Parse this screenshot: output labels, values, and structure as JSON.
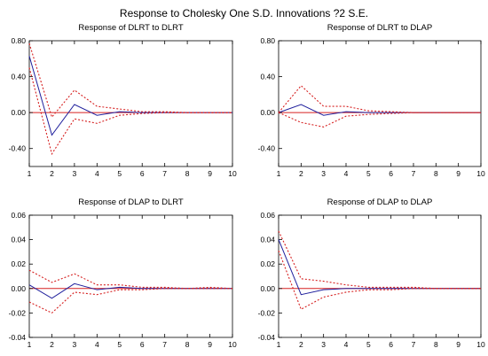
{
  "title": "Response to Cholesky One S.D. Innovations ?2 S.E.",
  "colors": {
    "response": "#1f1f9c",
    "band": "#d62020",
    "zero_line": "#d62020",
    "frame": "#000000"
  },
  "chart_data": [
    {
      "type": "line",
      "title": "Response of DLRT to DLRT",
      "x": [
        1,
        2,
        3,
        4,
        5,
        6,
        7,
        8,
        9,
        10
      ],
      "xlim": [
        1,
        10
      ],
      "ylim": [
        -0.6,
        0.8
      ],
      "yticks": [
        "0.80",
        "0.40",
        "0.00",
        "-0.40"
      ],
      "ytick_values": [
        0.8,
        0.4,
        0.0,
        -0.4
      ],
      "xticks": [
        "1",
        "2",
        "3",
        "4",
        "5",
        "6",
        "7",
        "8",
        "9",
        "10"
      ],
      "series": [
        {
          "values": [
            0.63,
            -0.25,
            0.09,
            -0.03,
            0.01,
            0.0,
            0.0,
            0.0,
            0.0,
            0.0
          ]
        },
        {
          "values": [
            0.77,
            -0.05,
            0.25,
            0.07,
            0.04,
            0.01,
            0.01,
            0.0,
            0.0,
            0.0
          ]
        },
        {
          "values": [
            0.5,
            -0.46,
            -0.07,
            -0.12,
            -0.03,
            -0.01,
            0.0,
            0.0,
            0.0,
            0.0
          ]
        }
      ]
    },
    {
      "type": "line",
      "title": "Response of DLRT to DLAP",
      "x": [
        1,
        2,
        3,
        4,
        5,
        6,
        7,
        8,
        9,
        10
      ],
      "xlim": [
        1,
        10
      ],
      "ylim": [
        -0.6,
        0.8
      ],
      "yticks": [
        "0.80",
        "0.40",
        "0.00",
        "-0.40"
      ],
      "ytick_values": [
        0.8,
        0.4,
        0.0,
        -0.4
      ],
      "xticks": [
        "1",
        "2",
        "3",
        "4",
        "5",
        "6",
        "7",
        "8",
        "9",
        "10"
      ],
      "series": [
        {
          "values": [
            0.0,
            0.09,
            -0.03,
            0.01,
            0.0,
            0.0,
            0.0,
            0.0,
            0.0,
            0.0
          ]
        },
        {
          "values": [
            0.0,
            0.3,
            0.07,
            0.07,
            0.02,
            0.01,
            0.0,
            0.0,
            0.0,
            0.0
          ]
        },
        {
          "values": [
            0.0,
            -0.11,
            -0.16,
            -0.04,
            -0.02,
            -0.01,
            0.0,
            0.0,
            0.0,
            0.0
          ]
        }
      ]
    },
    {
      "type": "line",
      "title": "Response of DLAP to DLRT",
      "x": [
        1,
        2,
        3,
        4,
        5,
        6,
        7,
        8,
        9,
        10
      ],
      "xlim": [
        1,
        10
      ],
      "ylim": [
        -0.04,
        0.06
      ],
      "yticks": [
        "0.06",
        "0.04",
        "0.02",
        "0.00",
        "-0.02",
        "-0.04"
      ],
      "ytick_values": [
        0.06,
        0.04,
        0.02,
        0.0,
        -0.02,
        -0.04
      ],
      "xticks": [
        "1",
        "2",
        "3",
        "4",
        "5",
        "6",
        "7",
        "8",
        "9",
        "10"
      ],
      "series": [
        {
          "values": [
            0.003,
            -0.008,
            0.004,
            -0.001,
            0.001,
            0.0,
            0.0,
            0.0,
            0.0,
            0.0
          ]
        },
        {
          "values": [
            0.015,
            0.005,
            0.012,
            0.003,
            0.003,
            0.001,
            0.001,
            0.0,
            0.001,
            0.0
          ]
        },
        {
          "values": [
            -0.011,
            -0.02,
            -0.003,
            -0.005,
            -0.001,
            -0.001,
            0.0,
            0.0,
            0.0,
            0.0
          ]
        }
      ]
    },
    {
      "type": "line",
      "title": "Response of DLAP to DLAP",
      "x": [
        1,
        2,
        3,
        4,
        5,
        6,
        7,
        8,
        9,
        10
      ],
      "xlim": [
        1,
        10
      ],
      "ylim": [
        -0.04,
        0.06
      ],
      "yticks": [
        "0.06",
        "0.04",
        "0.02",
        "0.00",
        "-0.02",
        "-0.04"
      ],
      "ytick_values": [
        0.06,
        0.04,
        0.02,
        0.0,
        -0.02,
        -0.04
      ],
      "xticks": [
        "1",
        "2",
        "3",
        "4",
        "5",
        "6",
        "7",
        "8",
        "9",
        "10"
      ],
      "series": [
        {
          "values": [
            0.04,
            -0.005,
            -0.001,
            0.0,
            0.0,
            0.0,
            0.0,
            0.0,
            0.0,
            0.0
          ]
        },
        {
          "values": [
            0.047,
            0.008,
            0.006,
            0.003,
            0.001,
            0.001,
            0.001,
            0.0,
            0.0,
            0.0
          ]
        },
        {
          "values": [
            0.031,
            -0.017,
            -0.007,
            -0.003,
            -0.001,
            -0.001,
            0.0,
            0.0,
            0.0,
            0.0
          ]
        }
      ]
    }
  ]
}
